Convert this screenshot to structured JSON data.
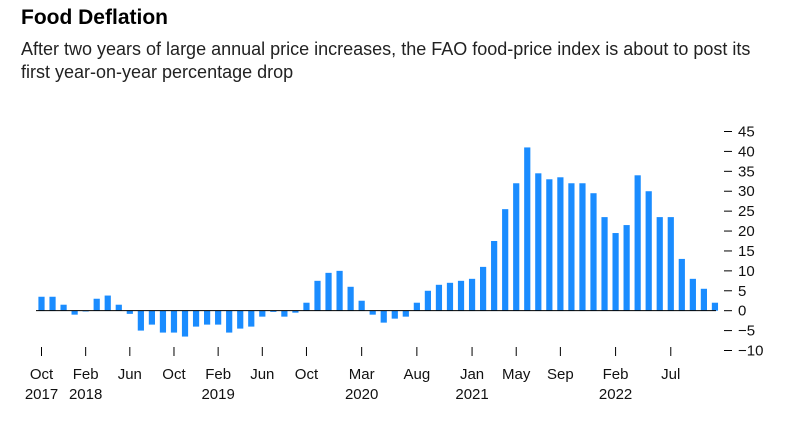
{
  "header": {
    "title": "Food Deflation",
    "subtitle": "After two years of large annual price increases, the FAO food-price index is about to post its first year-on-year percentage drop"
  },
  "chart_data": {
    "type": "bar",
    "title": "Food Deflation",
    "subtitle": "After two years of large annual price increases, the FAO food-price index is about to post its first year-on-year percentage drop",
    "ylabel": "",
    "xlabel": "",
    "ylim": [
      -10,
      45
    ],
    "yticks": [
      -10,
      -5,
      0,
      5,
      10,
      15,
      20,
      25,
      30,
      35,
      40,
      45
    ],
    "y_axis_side": "right",
    "grid": false,
    "bar_color": "#1a8cff",
    "start_month": "Oct 2017",
    "values": [
      3.5,
      3.5,
      1.5,
      -1,
      0,
      3,
      3.8,
      1.5,
      -0.8,
      -5,
      -3.5,
      -5.5,
      -5.5,
      -6.5,
      -4,
      -3.5,
      -3.5,
      -5.5,
      -4.5,
      -4,
      -1.5,
      -0.3,
      -1.5,
      -0.5,
      2,
      7.5,
      9.5,
      10,
      6,
      2.5,
      -1,
      -3,
      -2,
      -1.5,
      2,
      5,
      6.5,
      7,
      7.5,
      8,
      11,
      17.5,
      25.5,
      32,
      41,
      34.5,
      33,
      33.5,
      32,
      32,
      29.5,
      23.5,
      19.5,
      21.5,
      34,
      30,
      23.5,
      23.5,
      13,
      8,
      5.5,
      2
    ],
    "x_tick_labels": [
      {
        "month_index": 0,
        "label": "Oct",
        "year": "2017"
      },
      {
        "month_index": 4,
        "label": "Feb",
        "year": "2018"
      },
      {
        "month_index": 8,
        "label": "Jun",
        "year": ""
      },
      {
        "month_index": 12,
        "label": "Oct",
        "year": ""
      },
      {
        "month_index": 16,
        "label": "Feb",
        "year": "2019"
      },
      {
        "month_index": 20,
        "label": "Jun",
        "year": ""
      },
      {
        "month_index": 24,
        "label": "Oct",
        "year": ""
      },
      {
        "month_index": 29,
        "label": "Mar",
        "year": "2020"
      },
      {
        "month_index": 34,
        "label": "Aug",
        "year": ""
      },
      {
        "month_index": 39,
        "label": "Jan",
        "year": "2021"
      },
      {
        "month_index": 43,
        "label": "May",
        "year": ""
      },
      {
        "month_index": 47,
        "label": "Sep",
        "year": ""
      },
      {
        "month_index": 52,
        "label": "Feb",
        "year": "2022"
      },
      {
        "month_index": 57,
        "label": "Jul",
        "year": ""
      }
    ]
  }
}
